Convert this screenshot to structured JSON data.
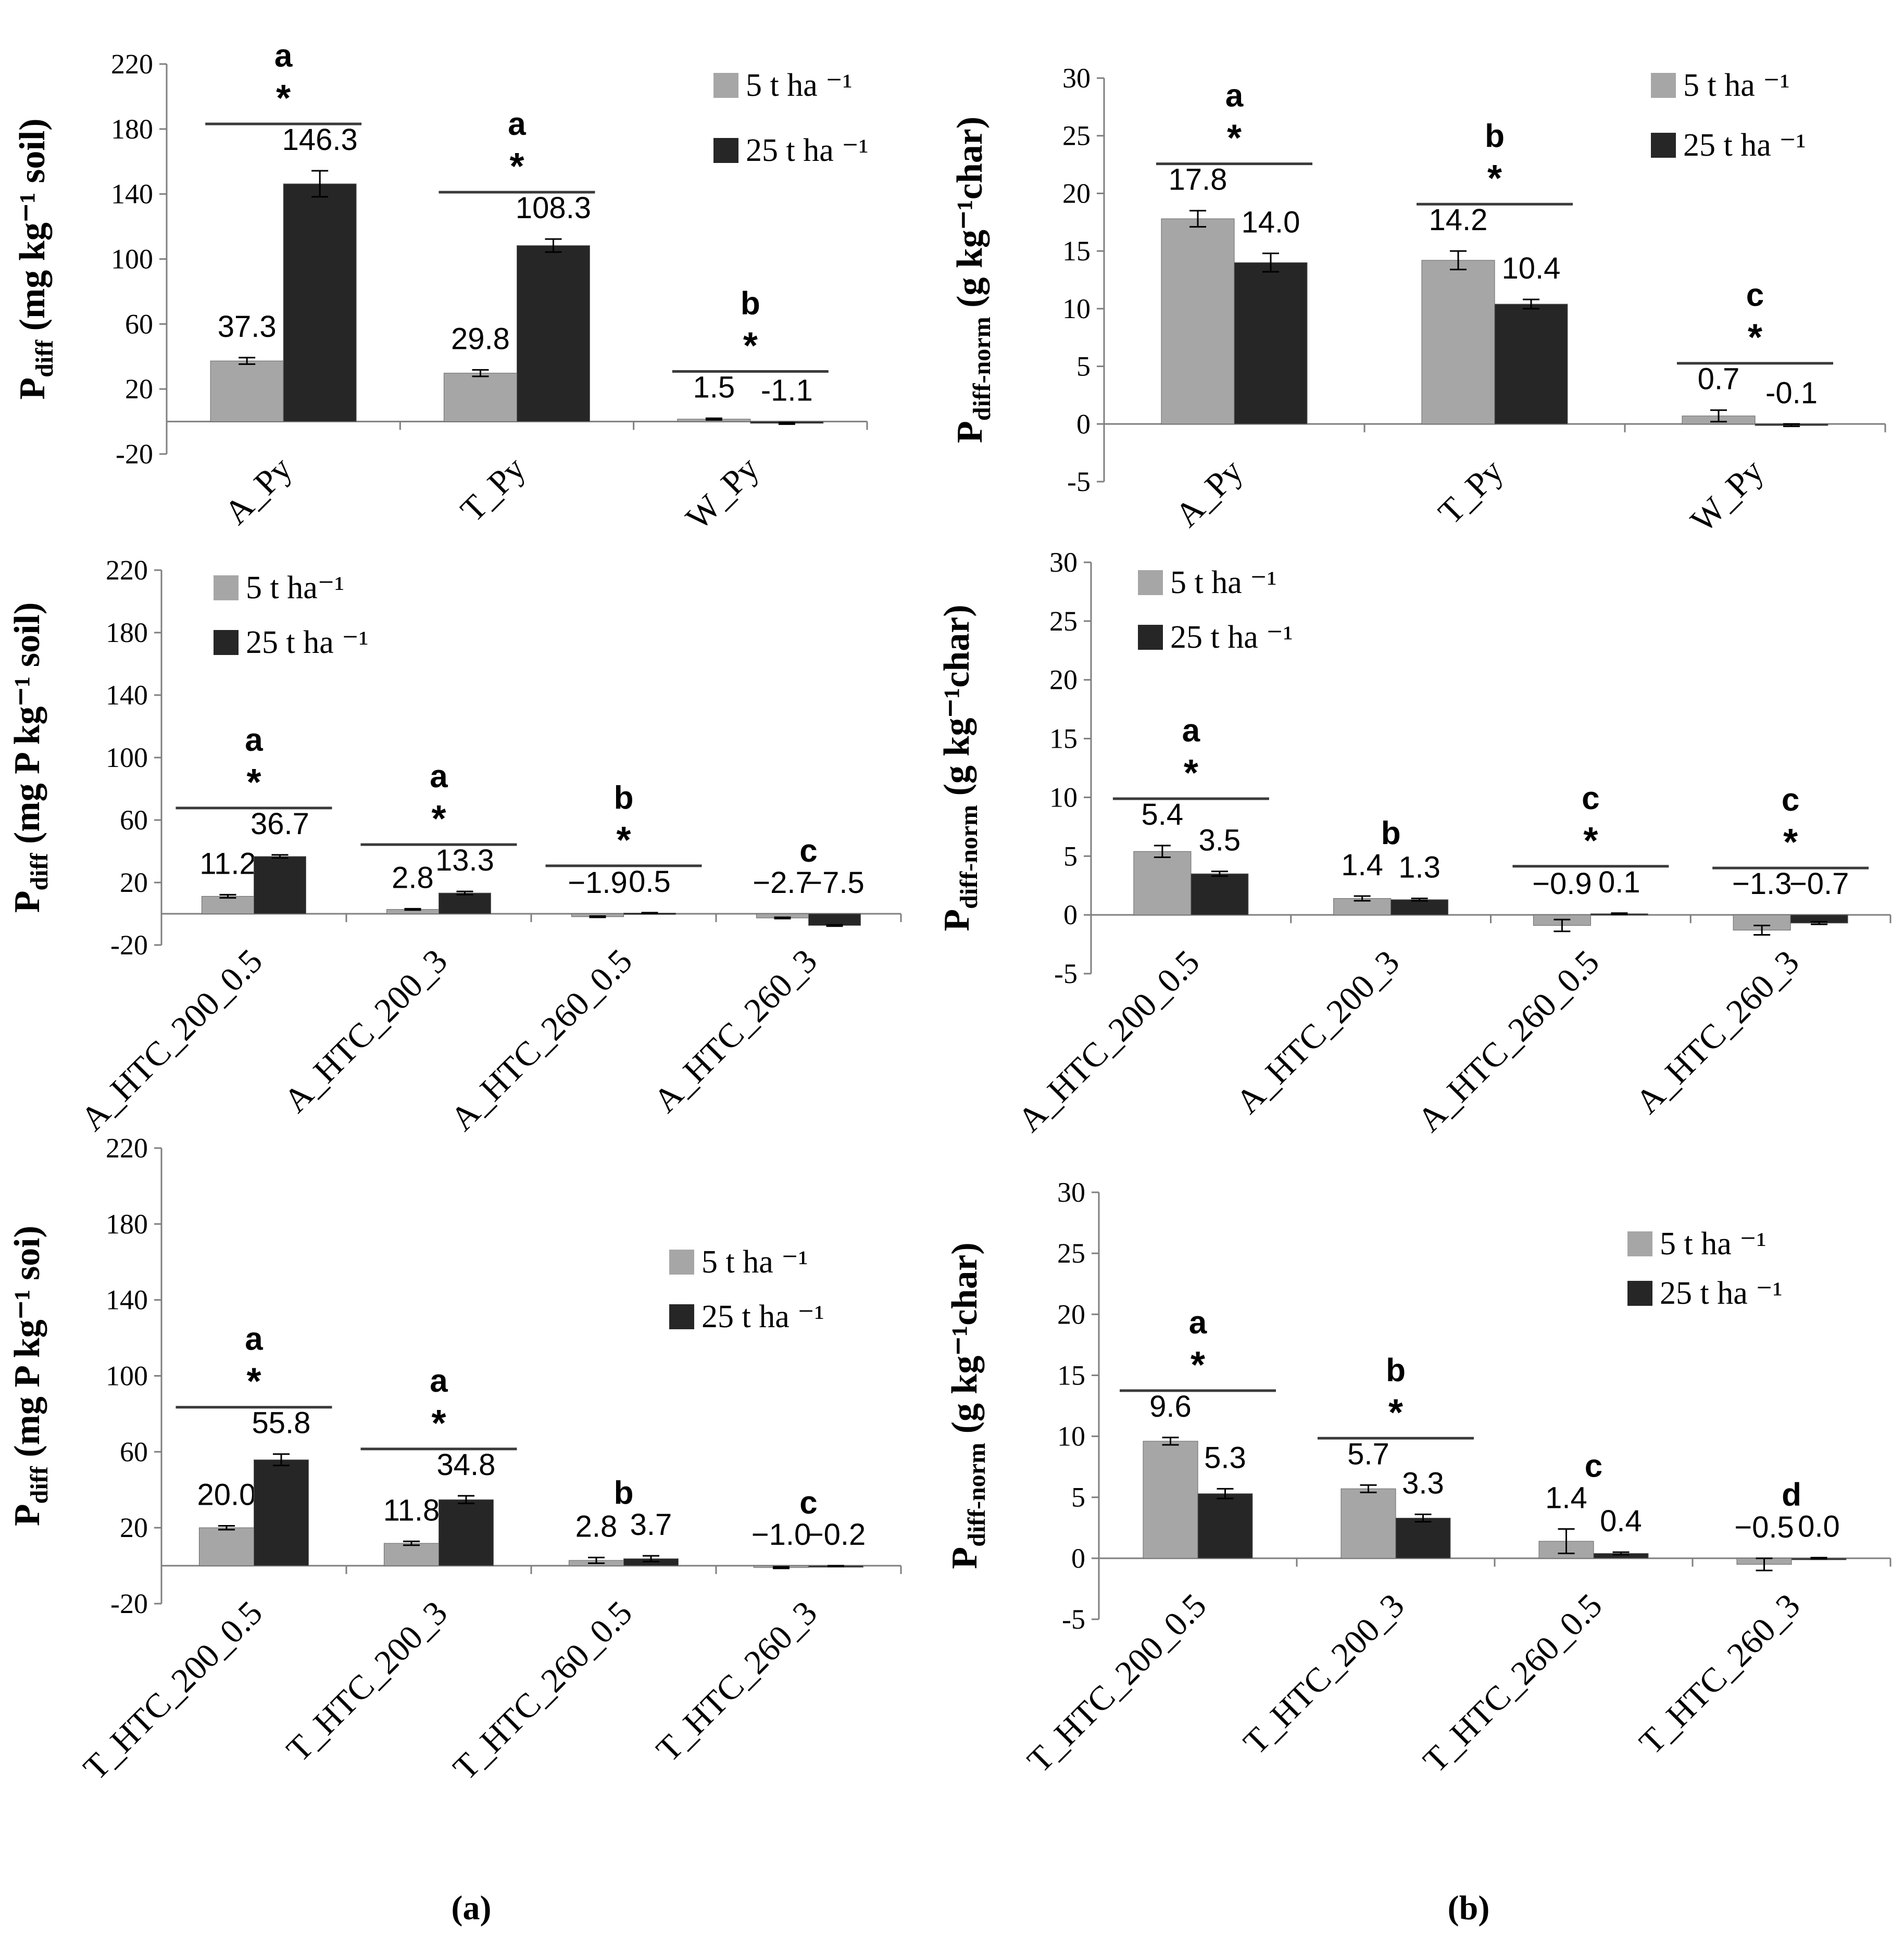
{
  "chart_data": [
    {
      "id": "a1",
      "type": "bar",
      "ylabel": "P",
      "ylabel_sub": "diff",
      "ylabel_rest": " (mg kg⁻¹ soil)",
      "ylim": [
        -20,
        220
      ],
      "yticks": [
        -20,
        20,
        60,
        100,
        140,
        180,
        220
      ],
      "categories": [
        "A_Py",
        "T_Py",
        "W_Py"
      ],
      "series": [
        {
          "name": "5 t ha ⁻¹",
          "values": [
            37.3,
            29.8,
            1.5
          ],
          "errors": [
            2,
            2,
            0.5
          ]
        },
        {
          "name": "25 t ha ⁻¹",
          "values": [
            146.3,
            108.3,
            -1.1
          ],
          "errors": [
            8,
            4,
            0.5
          ]
        }
      ],
      "value_labels": [
        [
          "37.3",
          "29.8",
          "1.5"
        ],
        [
          "146.3",
          "108.3",
          "-1.1"
        ]
      ],
      "letters": [
        "a",
        "a",
        "b"
      ],
      "significance": [
        true,
        true,
        true
      ],
      "legend_position": "top-right"
    },
    {
      "id": "b1",
      "type": "bar",
      "ylabel": "P",
      "ylabel_sub": "diff-norm",
      "ylabel_rest": " (g kg⁻¹char)",
      "ylim": [
        -5,
        30
      ],
      "yticks": [
        -5,
        0,
        5,
        10,
        15,
        20,
        25,
        30
      ],
      "categories": [
        "A_Py",
        "T_Py",
        "W_Py"
      ],
      "series": [
        {
          "name": "5 t ha ⁻¹",
          "values": [
            17.8,
            14.2,
            0.7
          ],
          "errors": [
            0.7,
            0.8,
            0.5
          ]
        },
        {
          "name": "25 t ha ⁻¹",
          "values": [
            14.0,
            10.4,
            -0.1
          ],
          "errors": [
            0.8,
            0.4,
            0.1
          ]
        }
      ],
      "value_labels": [
        [
          "17.8",
          "14.2",
          "0.7"
        ],
        [
          "14.0",
          "10.4",
          "-0.1"
        ]
      ],
      "letters": [
        "a",
        "b",
        "c"
      ],
      "significance": [
        true,
        true,
        true
      ],
      "legend_position": "top-right"
    },
    {
      "id": "a2",
      "type": "bar",
      "ylabel": "P",
      "ylabel_sub": "diff",
      "ylabel_rest": " (mg P kg⁻¹ soil)",
      "ylim": [
        -20,
        220
      ],
      "yticks": [
        -20,
        20,
        60,
        100,
        140,
        180,
        220
      ],
      "categories": [
        "A_HTC_200_0.5",
        "A_HTC_200_3",
        "A_HTC_260_0.5",
        "A_HTC_260_3"
      ],
      "series": [
        {
          "name": "5 t  ha⁻¹",
          "values": [
            11.2,
            2.8,
            -1.9,
            -2.7
          ],
          "errors": [
            1,
            0.4,
            0.4,
            0.4
          ]
        },
        {
          "name": "25 t  ha ⁻¹",
          "values": [
            36.7,
            13.3,
            0.5,
            -7.5
          ],
          "errors": [
            1,
            1,
            0.2,
            0.4
          ]
        }
      ],
      "value_labels": [
        [
          "11.2",
          "2.8",
          "−1.9",
          "−2.7"
        ],
        [
          "36.7",
          "13.3",
          "0.5",
          "−7.5"
        ]
      ],
      "letters": [
        "a",
        "a",
        "b",
        "c"
      ],
      "significance": [
        true,
        true,
        true,
        false
      ],
      "legend_position": "top-left"
    },
    {
      "id": "b2",
      "type": "bar",
      "ylabel": "P",
      "ylabel_sub": "diff-norm",
      "ylabel_rest": " (g kg⁻¹char)",
      "ylim": [
        -5,
        30
      ],
      "yticks": [
        -5,
        0,
        5,
        10,
        15,
        20,
        25,
        30
      ],
      "categories": [
        "A_HTC_200_0.5",
        "A_HTC_200_3",
        "A_HTC_260_0.5",
        "A_HTC_260_3"
      ],
      "series": [
        {
          "name": "5 t ha ⁻¹",
          "values": [
            5.4,
            1.4,
            -0.9,
            -1.3
          ],
          "errors": [
            0.5,
            0.2,
            0.5,
            0.4
          ]
        },
        {
          "name": "25 t  ha ⁻¹",
          "values": [
            3.5,
            1.3,
            0.1,
            -0.7
          ],
          "errors": [
            0.2,
            0.1,
            0.05,
            0.1
          ]
        }
      ],
      "value_labels": [
        [
          "5.4",
          "1.4",
          "−0.9",
          "−1.3"
        ],
        [
          "3.5",
          "1.3",
          "0.1",
          "−0.7"
        ]
      ],
      "letters": [
        "a",
        "b",
        "c",
        "c"
      ],
      "significance": [
        true,
        false,
        true,
        true
      ],
      "legend_position": "top-left"
    },
    {
      "id": "a3",
      "type": "bar",
      "ylabel": "P",
      "ylabel_sub": "diff",
      "ylabel_rest": " (mg P kg⁻¹ soi)",
      "ylim": [
        -20,
        220
      ],
      "yticks": [
        -20,
        20,
        60,
        100,
        140,
        180,
        220
      ],
      "categories": [
        "T_HTC_200_0.5",
        "T_HTC_200_3",
        "T_HTC_260_0.5",
        "T_HTC_260_3"
      ],
      "series": [
        {
          "name": "5 t ha ⁻¹",
          "values": [
            20.0,
            11.8,
            2.8,
            -1.0
          ],
          "errors": [
            1,
            1,
            1.5,
            0.4
          ]
        },
        {
          "name": "25 t  ha ⁻¹",
          "values": [
            55.8,
            34.8,
            3.7,
            -0.2
          ],
          "errors": [
            3,
            2,
            1.5,
            0.2
          ]
        }
      ],
      "value_labels": [
        [
          "20.0",
          "11.8",
          "2.8",
          "−1.0"
        ],
        [
          "55.8",
          "34.8",
          "3.7",
          "−0.2"
        ]
      ],
      "letters": [
        "a",
        "a",
        "b",
        "c"
      ],
      "significance": [
        true,
        true,
        false,
        false
      ],
      "legend_position": "top-right"
    },
    {
      "id": "b3",
      "type": "bar",
      "ylabel": "P",
      "ylabel_sub": "diff-norm",
      "ylabel_rest": " (g kg⁻¹char)",
      "ylim": [
        -5,
        30
      ],
      "yticks": [
        -5,
        0,
        5,
        10,
        15,
        20,
        25,
        30
      ],
      "categories": [
        "T_HTC_200_0.5",
        "T_HTC_200_3",
        "T_HTC_260_0.5",
        "T_HTC_260_3"
      ],
      "series": [
        {
          "name": "5 t  ha ⁻¹",
          "values": [
            9.6,
            5.7,
            1.4,
            -0.5
          ],
          "errors": [
            0.3,
            0.3,
            1.0,
            0.5
          ]
        },
        {
          "name": "25 t  ha ⁻¹",
          "values": [
            5.3,
            3.3,
            0.4,
            0.0
          ],
          "errors": [
            0.4,
            0.3,
            0.1,
            0.05
          ]
        }
      ],
      "value_labels": [
        [
          "9.6",
          "5.7",
          "1.4",
          "−0.5"
        ],
        [
          "5.3",
          "3.3",
          "0.4",
          "0.0"
        ]
      ],
      "letters": [
        "a",
        "b",
        "c",
        "d"
      ],
      "significance": [
        true,
        true,
        false,
        false
      ],
      "legend_position": "top-right"
    }
  ],
  "panel_labels": {
    "a": "(a)",
    "b": "(b)"
  },
  "colors": {
    "series1": "#a6a6a6",
    "series2": "#262626",
    "axis": "#7f7f7f",
    "text": "#000000"
  }
}
